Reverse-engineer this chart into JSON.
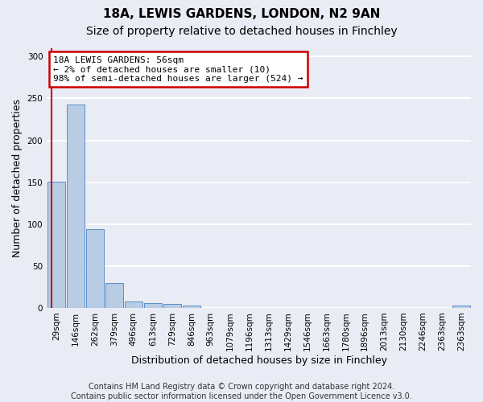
{
  "title1": "18A, LEWIS GARDENS, LONDON, N2 9AN",
  "title2": "Size of property relative to detached houses in Finchley",
  "xlabel": "Distribution of detached houses by size in Finchley",
  "ylabel": "Number of detached properties",
  "footer1": "Contains HM Land Registry data © Crown copyright and database right 2024.",
  "footer2": "Contains public sector information licensed under the Open Government Licence v3.0.",
  "bar_values": [
    151,
    243,
    94,
    30,
    8,
    6,
    5,
    3,
    0,
    0,
    0,
    0,
    0,
    0,
    0,
    0,
    0,
    0,
    0,
    0,
    0,
    3
  ],
  "bin_labels": [
    "29sqm",
    "146sqm",
    "262sqm",
    "379sqm",
    "496sqm",
    "613sqm",
    "729sqm",
    "846sqm",
    "963sqm",
    "1079sqm",
    "1196sqm",
    "1313sqm",
    "1429sqm",
    "1546sqm",
    "1663sqm",
    "1780sqm",
    "1896sqm",
    "2013sqm",
    "2130sqm",
    "2246sqm",
    "2363sqm",
    "2363sqm"
  ],
  "bar_color": "#b8cce4",
  "bar_edge_color": "#5a8ec9",
  "annotation_line1": "18A LEWIS GARDENS: 56sqm",
  "annotation_line2": "← 2% of detached houses are smaller (10)",
  "annotation_line3": "98% of semi-detached houses are larger (524) →",
  "annotation_box_color": "#ffffff",
  "annotation_box_edge_color": "#cc0000",
  "property_line_color": "#cc0000",
  "ylim": [
    0,
    310
  ],
  "yticks": [
    0,
    50,
    100,
    150,
    200,
    250,
    300
  ],
  "bg_color": "#eaecf5",
  "plot_bg_color": "#eaecf5",
  "grid_color": "#ffffff",
  "title_fontsize": 11,
  "subtitle_fontsize": 10,
  "axis_label_fontsize": 9,
  "tick_fontsize": 7.5,
  "footer_fontsize": 7
}
